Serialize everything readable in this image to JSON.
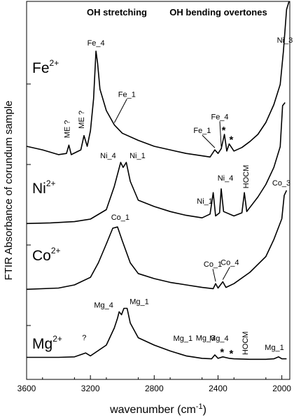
{
  "chart_data": {
    "type": "line",
    "xlabel": "wavenumber (cm",
    "xlabel_exp": "-1",
    "xlabel_close": ")",
    "ylabel": "FTIR Absorbance of corundum sample",
    "xlim": [
      3600,
      1950
    ],
    "x_reversed": true,
    "y_tick_labels_shown": false,
    "x_ticks": [
      3600,
      3200,
      2800,
      2400,
      2000
    ],
    "x_tick_labels": [
      "3600",
      "3200",
      "2800",
      "2400",
      "2000"
    ],
    "region_labels": [
      "OH stretching",
      "OH bending overtones"
    ],
    "series": [
      {
        "name": "Fe",
        "charge": "2+",
        "points": [
          [
            3600,
            0.1
          ],
          [
            3500,
            0.07
          ],
          [
            3400,
            0.03
          ],
          [
            3350,
            0.04
          ],
          [
            3335,
            0.11
          ],
          [
            3320,
            0.03
          ],
          [
            3260,
            0.07
          ],
          [
            3240,
            0.19
          ],
          [
            3220,
            0.1
          ],
          [
            3200,
            0.23
          ],
          [
            3180,
            0.5
          ],
          [
            3165,
            0.9
          ],
          [
            3155,
            0.8
          ],
          [
            3140,
            0.58
          ],
          [
            3100,
            0.4
          ],
          [
            3050,
            0.28
          ],
          [
            3000,
            0.21
          ],
          [
            2900,
            0.15
          ],
          [
            2800,
            0.1
          ],
          [
            2700,
            0.07
          ],
          [
            2600,
            0.04
          ],
          [
            2500,
            0.02
          ],
          [
            2450,
            0.01
          ],
          [
            2420,
            0.07
          ],
          [
            2400,
            0.04
          ],
          [
            2380,
            0.08
          ],
          [
            2360,
            0.2
          ],
          [
            2345,
            0.06
          ],
          [
            2330,
            0.12
          ],
          [
            2300,
            0.06
          ],
          [
            2250,
            0.09
          ],
          [
            2200,
            0.14
          ],
          [
            2150,
            0.2
          ],
          [
            2100,
            0.3
          ],
          [
            2050,
            0.45
          ],
          [
            2010,
            0.62
          ],
          [
            1990,
            0.9
          ],
          [
            1970,
            1.25
          ],
          [
            1955,
            1.55
          ]
        ]
      },
      {
        "name": "Ni",
        "charge": "2+",
        "points": [
          [
            3600,
            0.03
          ],
          [
            3450,
            0.04
          ],
          [
            3300,
            0.06
          ],
          [
            3200,
            0.1
          ],
          [
            3100,
            0.25
          ],
          [
            3050,
            0.62
          ],
          [
            3010,
            1.0
          ],
          [
            2995,
            0.92
          ],
          [
            2975,
            1.0
          ],
          [
            2950,
            0.7
          ],
          [
            2900,
            0.4
          ],
          [
            2800,
            0.3
          ],
          [
            2700,
            0.22
          ],
          [
            2600,
            0.16
          ],
          [
            2500,
            0.12
          ],
          [
            2450,
            0.18
          ],
          [
            2430,
            0.52
          ],
          [
            2415,
            0.15
          ],
          [
            2390,
            0.2
          ],
          [
            2380,
            0.58
          ],
          [
            2365,
            0.22
          ],
          [
            2300,
            0.15
          ],
          [
            2250,
            0.2
          ],
          [
            2235,
            0.52
          ],
          [
            2220,
            0.22
          ],
          [
            2150,
            0.45
          ],
          [
            2100,
            0.65
          ],
          [
            2050,
            0.92
          ],
          [
            2010,
            1.25
          ],
          [
            1995,
            1.9
          ],
          [
            1980,
            1.95
          ]
        ]
      },
      {
        "name": "Co",
        "charge": "2+",
        "points": [
          [
            3600,
            0.03
          ],
          [
            3400,
            0.05
          ],
          [
            3300,
            0.1
          ],
          [
            3200,
            0.22
          ],
          [
            3150,
            0.45
          ],
          [
            3100,
            0.75
          ],
          [
            3060,
            1.0
          ],
          [
            3030,
            1.02
          ],
          [
            3000,
            0.8
          ],
          [
            2950,
            0.45
          ],
          [
            2900,
            0.28
          ],
          [
            2800,
            0.2
          ],
          [
            2700,
            0.14
          ],
          [
            2600,
            0.1
          ],
          [
            2500,
            0.06
          ],
          [
            2430,
            0.04
          ],
          [
            2415,
            0.12
          ],
          [
            2400,
            0.05
          ],
          [
            2370,
            0.15
          ],
          [
            2350,
            0.06
          ],
          [
            2300,
            0.12
          ],
          [
            2200,
            0.3
          ],
          [
            2100,
            0.55
          ],
          [
            2050,
            0.82
          ],
          [
            2000,
            1.15
          ],
          [
            1985,
            1.52
          ],
          [
            1970,
            1.6
          ]
        ]
      },
      {
        "name": "Mg",
        "charge": "2+",
        "points": [
          [
            3600,
            0.05
          ],
          [
            3400,
            0.05
          ],
          [
            3300,
            0.06
          ],
          [
            3230,
            0.14
          ],
          [
            3200,
            0.08
          ],
          [
            3100,
            0.3
          ],
          [
            3050,
            0.65
          ],
          [
            3030,
            0.85
          ],
          [
            3020,
            0.98
          ],
          [
            3005,
            0.92
          ],
          [
            2990,
            1.05
          ],
          [
            2970,
            1.05
          ],
          [
            2950,
            0.75
          ],
          [
            2900,
            0.45
          ],
          [
            2800,
            0.3
          ],
          [
            2700,
            0.18
          ],
          [
            2600,
            0.08
          ],
          [
            2500,
            0.03
          ],
          [
            2440,
            0.02
          ],
          [
            2420,
            0.1
          ],
          [
            2400,
            0.03
          ],
          [
            2370,
            0.06
          ],
          [
            2330,
            0.03
          ],
          [
            2300,
            0.02
          ],
          [
            2200,
            0.01
          ],
          [
            2100,
            0.01
          ],
          [
            2050,
            0.02
          ],
          [
            2020,
            0.06
          ],
          [
            2000,
            0.02
          ],
          [
            1970,
            0.02
          ]
        ]
      }
    ],
    "annotations": [
      {
        "text": "ME ?",
        "series": "Fe",
        "x": 3335,
        "vertical": true
      },
      {
        "text": "ME ?",
        "series": "Fe",
        "x": 3240,
        "vertical": true
      },
      {
        "text": "Fe_4",
        "series": "Fe",
        "x": 3165
      },
      {
        "text": "Fe_1",
        "series": "Fe",
        "x": 3050
      },
      {
        "text": "Fe_4",
        "series": "Fe",
        "x": 2380
      },
      {
        "text": "Fe_1",
        "series": "Fe",
        "x": 2420
      },
      {
        "text": "*",
        "series": "Fe",
        "x": 2360
      },
      {
        "text": "*",
        "series": "Fe",
        "x": 2330
      },
      {
        "text": "Ni_3",
        "series": "Fe",
        "x": 1990
      },
      {
        "text": "Ni_4",
        "series": "Ni",
        "x": 3010
      },
      {
        "text": "Ni_1",
        "series": "Ni",
        "x": 2975
      },
      {
        "text": "Ni_1",
        "series": "Ni",
        "x": 2430
      },
      {
        "text": "Ni_4",
        "series": "Ni",
        "x": 2380
      },
      {
        "text": "HOCM",
        "series": "Ni",
        "x": 2235,
        "vertical": true
      },
      {
        "text": "Co_1",
        "series": "Co",
        "x": 3030
      },
      {
        "text": "Co_1",
        "series": "Co",
        "x": 2415
      },
      {
        "text": "Co_4",
        "series": "Co",
        "x": 2370
      },
      {
        "text": "Co_3",
        "series": "Co",
        "x": 1985
      },
      {
        "text": "?",
        "series": "Mg",
        "x": 3230
      },
      {
        "text": "Mg_4",
        "series": "Mg",
        "x": 3020
      },
      {
        "text": "Mg_1",
        "series": "Mg",
        "x": 2990
      },
      {
        "text": "Mg_1",
        "series": "Mg",
        "x": 2620
      },
      {
        "text": "Mg_3",
        "series": "Mg",
        "x": 2470
      },
      {
        "text": "Mg_4",
        "series": "Mg",
        "x": 2420
      },
      {
        "text": "*",
        "series": "Mg",
        "x": 2370
      },
      {
        "text": "*",
        "series": "Mg",
        "x": 2330
      },
      {
        "text": "HOCM",
        "series": "Mg",
        "x": 2240,
        "vertical": true
      },
      {
        "text": "Mg_1",
        "series": "Mg",
        "x": 2020
      }
    ]
  }
}
